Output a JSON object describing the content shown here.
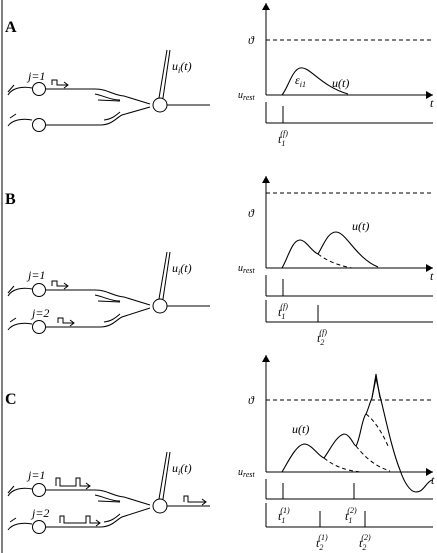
{
  "panels": [
    {
      "label": "A",
      "neurons": [
        {
          "label": "j=1"
        }
      ],
      "out_label": "u",
      "out_sub": "i",
      "out_suffix": "(t)",
      "threshold": "ϑ",
      "rest_main": "u",
      "rest_sub": "rest",
      "time": "t",
      "curve_label": "u(t)",
      "epsilon_main": "ε",
      "epsilon_sub": "i1",
      "spikes": [
        {
          "main": "t",
          "sub": "1",
          "sup": "(f)"
        }
      ]
    },
    {
      "label": "B",
      "neurons": [
        {
          "label": "j=1"
        },
        {
          "label": "j=2"
        }
      ],
      "out_label": "u",
      "out_sub": "i",
      "out_suffix": "(t)",
      "threshold": "ϑ",
      "rest_main": "u",
      "rest_sub": "rest",
      "time": "t",
      "curve_label": "u(t)",
      "spikes": [
        {
          "main": "t",
          "sub": "1",
          "sup": "(f)"
        },
        {
          "main": "t",
          "sub": "2",
          "sup": "(f)"
        }
      ]
    },
    {
      "label": "C",
      "neurons": [
        {
          "label": "j=1"
        },
        {
          "label": "j=2"
        }
      ],
      "out_label": "u",
      "out_sub": "i",
      "out_suffix": "(t)",
      "threshold": "ϑ",
      "rest_main": "u",
      "rest_sub": "rest",
      "time": "t",
      "curve_label": "u(t)",
      "spikes": [
        {
          "main": "t",
          "sub": "1",
          "sup": "(1)"
        },
        {
          "main": "t",
          "sub": "2",
          "sup": "(1)"
        },
        {
          "main": "t",
          "sub": "1",
          "sup": "(2)"
        },
        {
          "main": "t",
          "sub": "2",
          "sup": "(2)"
        }
      ]
    }
  ]
}
